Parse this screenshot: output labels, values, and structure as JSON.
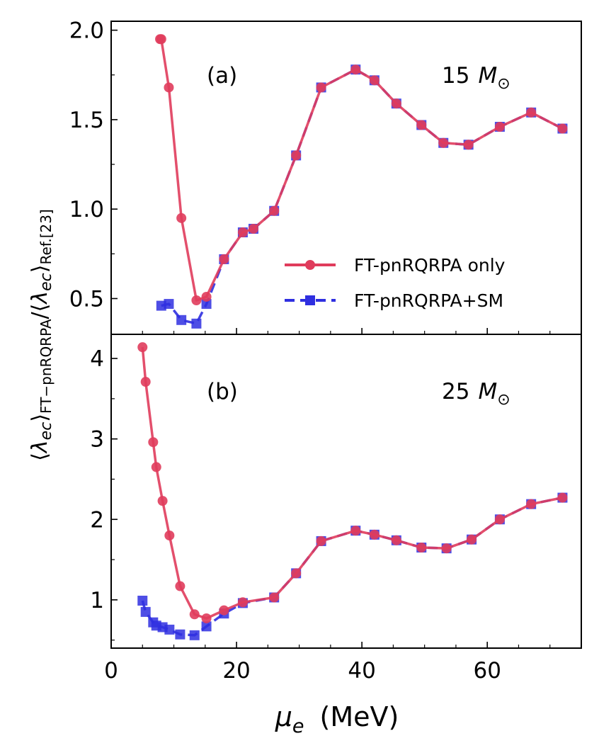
{
  "chart_data": {
    "type": "line",
    "xlabel_symbol": "μ",
    "xlabel_subscript": "e",
    "xlabel_unit": "(MeV)",
    "ylabel": "⟨λec⟩FT−pnRQRPA/⟨λec⟩Ref.[23]",
    "xlim": [
      0,
      75
    ],
    "x_ticks": [
      0,
      20,
      40,
      60
    ],
    "grid": false,
    "legend": {
      "placement": "lower-right of panel (a)",
      "entries": [
        "FT-pnRQRPA only",
        "FT-pnRQRPA+SM"
      ]
    },
    "colors": {
      "ft_only": "#e03c5c",
      "ft_sm": "#2f2fe0"
    },
    "panels": [
      {
        "label": "(a)",
        "mass_number": "15",
        "mass_symbol": "M",
        "mass_sub": "⊙",
        "ylim": [
          0.3,
          2.05
        ],
        "y_ticks": [
          0.5,
          1.0,
          1.5,
          2.0
        ],
        "y_tick_labels": [
          "0.5",
          "1.0",
          "1.5",
          "2.0"
        ],
        "series": [
          {
            "name": "FT-pnRQRPA only",
            "style": "solid-circle",
            "x": [
              7.8,
              8.0,
              9.2,
              11.2,
              13.6,
              15.2,
              18.0,
              21.0,
              22.7,
              26.0,
              29.5,
              33.5,
              39.0,
              42.0,
              45.5,
              49.5,
              53.0,
              57.0,
              62.0,
              67.0,
              72.0
            ],
            "y": [
              1.95,
              1.95,
              1.68,
              0.95,
              0.49,
              0.51,
              0.72,
              0.87,
              0.89,
              0.99,
              1.3,
              1.68,
              1.78,
              1.72,
              1.59,
              1.47,
              1.37,
              1.36,
              1.46,
              1.54,
              1.45
            ]
          },
          {
            "name": "FT-pnRQRPA+SM",
            "style": "dashed-square",
            "x": [
              8.0,
              9.2,
              11.2,
              13.6,
              15.2,
              18.0,
              21.0,
              22.7,
              26.0,
              29.5,
              33.5,
              39.0,
              42.0,
              45.5,
              49.5,
              53.0,
              57.0,
              62.0,
              67.0,
              72.0
            ],
            "y": [
              0.46,
              0.47,
              0.38,
              0.36,
              0.47,
              0.72,
              0.87,
              0.89,
              0.99,
              1.3,
              1.68,
              1.78,
              1.72,
              1.59,
              1.47,
              1.37,
              1.36,
              1.46,
              1.54,
              1.45
            ]
          }
        ]
      },
      {
        "label": "(b)",
        "mass_number": "25",
        "mass_symbol": "M",
        "mass_sub": "⊙",
        "ylim": [
          0.4,
          4.3
        ],
        "y_ticks": [
          1,
          2,
          3,
          4
        ],
        "y_tick_labels": [
          "1",
          "2",
          "3",
          "4"
        ],
        "series": [
          {
            "name": "FT-pnRQRPA only",
            "style": "solid-circle",
            "x": [
              5.0,
              5.5,
              6.7,
              7.2,
              8.2,
              9.3,
              11.0,
              13.3,
              15.2,
              18.0,
              21.0,
              26.0,
              29.5,
              33.5,
              39.0,
              42.0,
              45.5,
              49.5,
              53.5,
              57.5,
              62.0,
              67.0,
              72.0
            ],
            "y": [
              4.14,
              3.71,
              2.96,
              2.65,
              2.23,
              1.8,
              1.17,
              0.82,
              0.77,
              0.87,
              0.97,
              1.03,
              1.33,
              1.73,
              1.86,
              1.81,
              1.74,
              1.65,
              1.64,
              1.75,
              2.0,
              2.19,
              2.27
            ]
          },
          {
            "name": "FT-pnRQRPA+SM",
            "style": "dashed-square",
            "x": [
              5.0,
              5.5,
              6.7,
              7.2,
              8.2,
              9.3,
              11.0,
              13.3,
              15.2,
              18.0,
              21.0,
              26.0,
              29.5,
              33.5,
              39.0,
              42.0,
              45.5,
              49.5,
              53.5,
              57.5,
              62.0,
              67.0,
              72.0
            ],
            "y": [
              0.99,
              0.85,
              0.72,
              0.68,
              0.66,
              0.63,
              0.57,
              0.56,
              0.67,
              0.83,
              0.96,
              1.03,
              1.33,
              1.73,
              1.86,
              1.81,
              1.74,
              1.65,
              1.64,
              1.75,
              2.0,
              2.19,
              2.27
            ]
          }
        ]
      }
    ]
  }
}
